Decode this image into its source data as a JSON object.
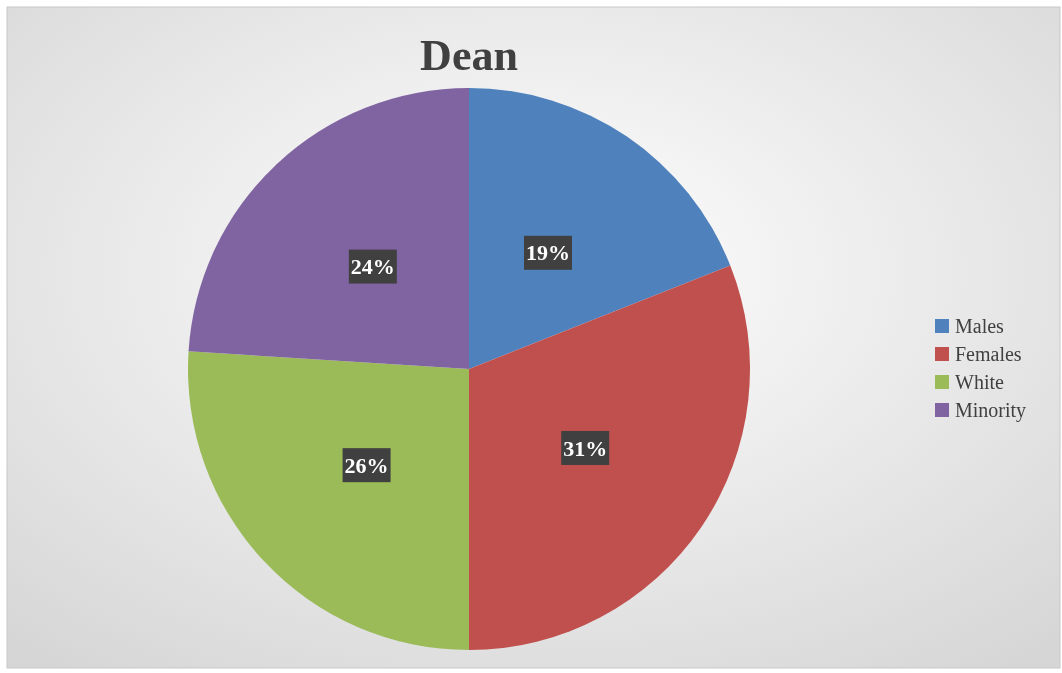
{
  "chart_data": {
    "type": "pie",
    "title": "Dean",
    "categories": [
      "Males",
      "Females",
      "White",
      "Minority"
    ],
    "values": [
      19,
      31,
      26,
      24
    ],
    "colors": [
      "#4f81bd",
      "#c0504d",
      "#9bbb59",
      "#8064a2"
    ],
    "value_labels": [
      "19%",
      "31%",
      "26%",
      "24%"
    ],
    "legend": "right"
  }
}
